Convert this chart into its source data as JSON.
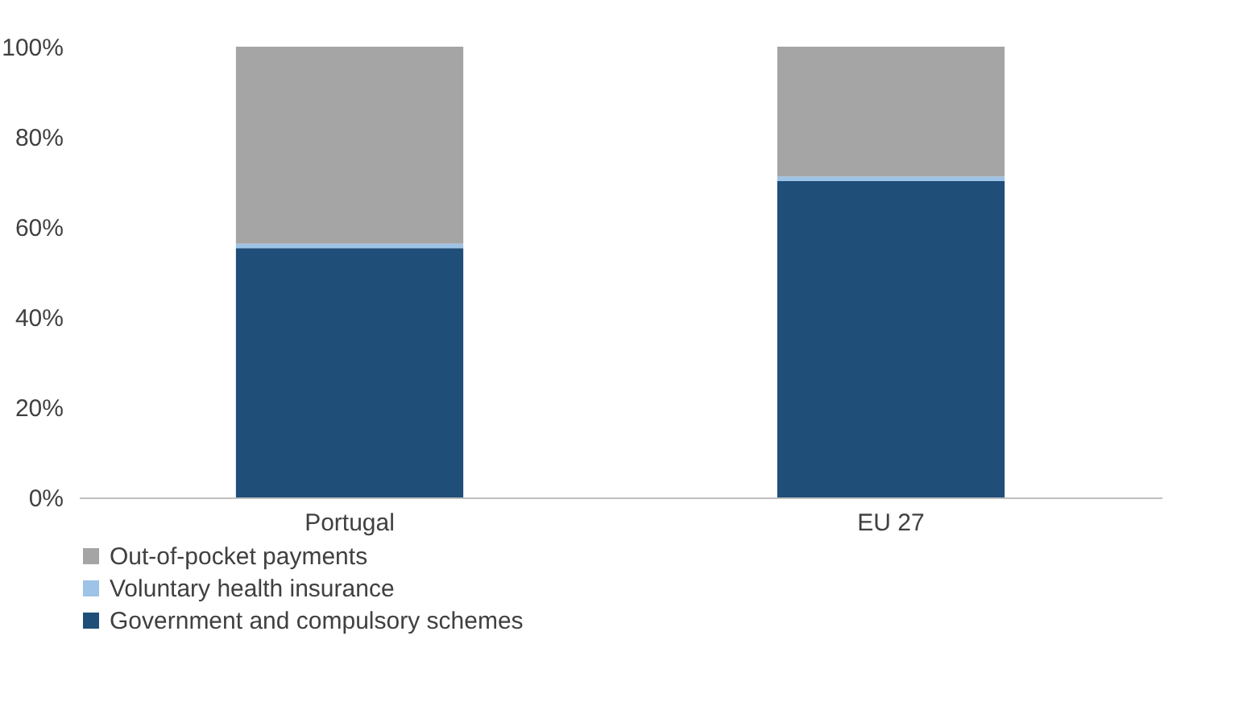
{
  "chart_data": {
    "type": "bar",
    "stacked": true,
    "categories": [
      "Portugal",
      "EU 27"
    ],
    "series": [
      {
        "name": "Government and compulsory schemes",
        "color": "#1f4e79",
        "values": [
          55.3,
          70.2
        ]
      },
      {
        "name": "Voluntary health insurance",
        "color": "#9dc3e6",
        "values": [
          1.0,
          1.0
        ]
      },
      {
        "name": "Out-of-pocket payments",
        "color": "#a5a5a5",
        "values": [
          43.7,
          28.8
        ]
      }
    ],
    "ylim": [
      0,
      100
    ],
    "yticks": [
      {
        "value": 0,
        "label": "0%"
      },
      {
        "value": 20,
        "label": "20%"
      },
      {
        "value": 40,
        "label": "40%"
      },
      {
        "value": 60,
        "label": "60%"
      },
      {
        "value": 80,
        "label": "80%"
      },
      {
        "value": 100,
        "label": "100%"
      }
    ],
    "grid": false,
    "legend": "bottom"
  }
}
